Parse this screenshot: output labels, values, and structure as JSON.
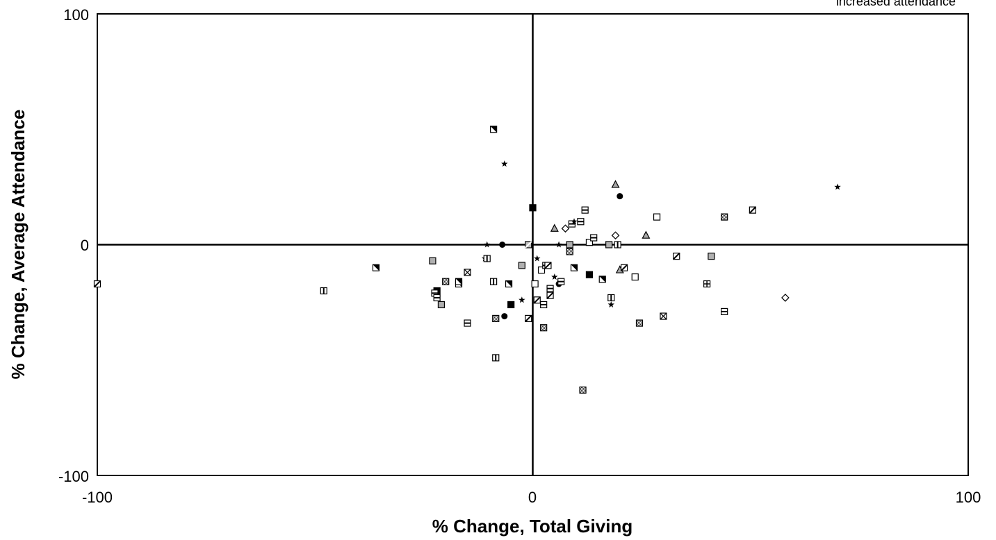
{
  "chart_data": {
    "type": "scatter",
    "xlabel": "% Change, Total Giving",
    "ylabel": "% Change, Average Attendance",
    "xlim": [
      -100,
      100
    ],
    "ylim": [
      -100,
      100
    ],
    "x_ticks": [
      "-100",
      "0",
      "100"
    ],
    "y_ticks": [
      "-100",
      "0",
      "100"
    ],
    "annotation": "increased attendance",
    "grid": false,
    "quadrant_lines": true,
    "points": [
      {
        "x": -100,
        "y": -17,
        "m": "slash"
      },
      {
        "x": -48,
        "y": -20,
        "m": "vline"
      },
      {
        "x": -36,
        "y": -10,
        "m": "diag"
      },
      {
        "x": -23,
        "y": -7,
        "m": "gray"
      },
      {
        "x": -22,
        "y": -20,
        "m": "black"
      },
      {
        "x": -22.5,
        "y": -21,
        "m": "hline"
      },
      {
        "x": -22,
        "y": -23,
        "m": "hline"
      },
      {
        "x": -21,
        "y": -26,
        "m": "gray"
      },
      {
        "x": -20,
        "y": -16,
        "m": "dots"
      },
      {
        "x": -17,
        "y": -17,
        "m": "diag"
      },
      {
        "x": -17,
        "y": -16,
        "m": "diag"
      },
      {
        "x": -15,
        "y": -12,
        "m": "xbox"
      },
      {
        "x": -15,
        "y": -34,
        "m": "hline"
      },
      {
        "x": -11,
        "y": -6,
        "m": "star"
      },
      {
        "x": -10.5,
        "y": -6,
        "m": "vline"
      },
      {
        "x": -10.5,
        "y": 0,
        "m": "star"
      },
      {
        "x": -9,
        "y": 50,
        "m": "diag"
      },
      {
        "x": -9,
        "y": -16,
        "m": "vline"
      },
      {
        "x": -8.5,
        "y": -32,
        "m": "dots"
      },
      {
        "x": -8.5,
        "y": -49,
        "m": "vline"
      },
      {
        "x": -7,
        "y": 0,
        "m": "circle"
      },
      {
        "x": -6.5,
        "y": 35,
        "m": "star"
      },
      {
        "x": -6.5,
        "y": -31,
        "m": "circle"
      },
      {
        "x": -5.5,
        "y": -17,
        "m": "diag"
      },
      {
        "x": -5,
        "y": -26,
        "m": "black"
      },
      {
        "x": -2.5,
        "y": -9,
        "m": "gray"
      },
      {
        "x": -2.5,
        "y": -24,
        "m": "star"
      },
      {
        "x": -1,
        "y": 0,
        "m": "slashgray"
      },
      {
        "x": -1,
        "y": -32,
        "m": "slash"
      },
      {
        "x": 0,
        "y": 16,
        "m": "black"
      },
      {
        "x": 0.5,
        "y": -17,
        "m": "white"
      },
      {
        "x": 1,
        "y": -6,
        "m": "star"
      },
      {
        "x": 1,
        "y": -24,
        "m": "slash"
      },
      {
        "x": 2,
        "y": -11,
        "m": "white"
      },
      {
        "x": 2.5,
        "y": -26,
        "m": "hline"
      },
      {
        "x": 2.5,
        "y": -36,
        "m": "dots"
      },
      {
        "x": 3,
        "y": -9,
        "m": "hline"
      },
      {
        "x": 3.5,
        "y": -9,
        "m": "slash"
      },
      {
        "x": 4,
        "y": -19,
        "m": "hline"
      },
      {
        "x": 4,
        "y": -22,
        "m": "slash"
      },
      {
        "x": 5,
        "y": -14,
        "m": "star"
      },
      {
        "x": 5,
        "y": 7,
        "m": "tri"
      },
      {
        "x": 6,
        "y": 0,
        "m": "star"
      },
      {
        "x": 6,
        "y": -17,
        "m": "circle"
      },
      {
        "x": 6.5,
        "y": -16,
        "m": "hline"
      },
      {
        "x": 7.5,
        "y": 7,
        "m": "diamond"
      },
      {
        "x": 8.5,
        "y": 0,
        "m": "gray"
      },
      {
        "x": 8.5,
        "y": -3,
        "m": "dots"
      },
      {
        "x": 9,
        "y": 9,
        "m": "hline"
      },
      {
        "x": 9.5,
        "y": 10,
        "m": "star"
      },
      {
        "x": 9.5,
        "y": -10,
        "m": "diag"
      },
      {
        "x": 11,
        "y": 10,
        "m": "hline"
      },
      {
        "x": 11.5,
        "y": -63,
        "m": "dots"
      },
      {
        "x": 12,
        "y": 15,
        "m": "hline"
      },
      {
        "x": 13,
        "y": 1,
        "m": "white"
      },
      {
        "x": 13,
        "y": -13,
        "m": "black"
      },
      {
        "x": 14,
        "y": 3,
        "m": "hline"
      },
      {
        "x": 16,
        "y": -15,
        "m": "diag"
      },
      {
        "x": 17.5,
        "y": 0,
        "m": "gray"
      },
      {
        "x": 18,
        "y": -23,
        "m": "vline"
      },
      {
        "x": 18,
        "y": -26,
        "m": "star"
      },
      {
        "x": 19,
        "y": 26,
        "m": "tri"
      },
      {
        "x": 19,
        "y": 4,
        "m": "diamond"
      },
      {
        "x": 19.5,
        "y": 0,
        "m": "vline"
      },
      {
        "x": 20,
        "y": 21,
        "m": "circle"
      },
      {
        "x": 20,
        "y": -11,
        "m": "tri"
      },
      {
        "x": 21,
        "y": -10,
        "m": "slash"
      },
      {
        "x": 23.5,
        "y": -14,
        "m": "white"
      },
      {
        "x": 24.5,
        "y": -34,
        "m": "dots"
      },
      {
        "x": 26,
        "y": 4,
        "m": "tri"
      },
      {
        "x": 28.5,
        "y": 12,
        "m": "white"
      },
      {
        "x": 30,
        "y": -31,
        "m": "xbox"
      },
      {
        "x": 33,
        "y": -5,
        "m": "slash"
      },
      {
        "x": 40,
        "y": -17,
        "m": "plus"
      },
      {
        "x": 41,
        "y": -5,
        "m": "gray"
      },
      {
        "x": 44,
        "y": 12,
        "m": "dots"
      },
      {
        "x": 44,
        "y": -29,
        "m": "hline"
      },
      {
        "x": 50.5,
        "y": 15,
        "m": "slash"
      },
      {
        "x": 58,
        "y": -23,
        "m": "diamond"
      },
      {
        "x": 70,
        "y": 25,
        "m": "star"
      }
    ]
  }
}
